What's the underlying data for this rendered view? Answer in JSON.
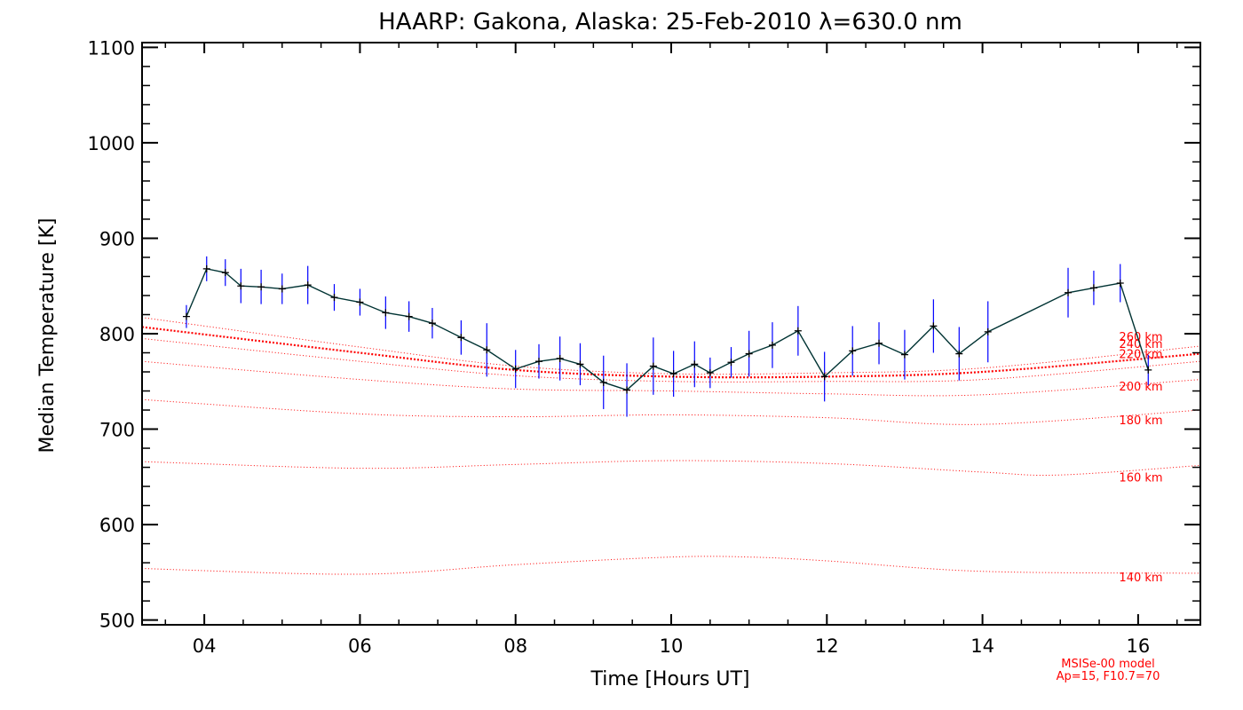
{
  "chart_data": {
    "type": "line",
    "title": "HAARP: Gakona,  Alaska: 25-Feb-2010 λ=630.0 nm",
    "xlabel": "Time [Hours UT]",
    "ylabel": "Median Temperature [K]",
    "xlim": [
      3.2,
      16.8
    ],
    "ylim": [
      495,
      1105
    ],
    "x_ticks": [
      4,
      6,
      8,
      10,
      12,
      14,
      16
    ],
    "x_tick_labels": [
      "04",
      "06",
      "08",
      "10",
      "12",
      "14",
      "16"
    ],
    "y_ticks": [
      500,
      600,
      700,
      800,
      900,
      1000,
      1100
    ],
    "y_tick_labels": [
      "500",
      "600",
      "700",
      "800",
      "900",
      "1000",
      "1100"
    ],
    "grid": false,
    "colors": {
      "measurement_line": "#003333",
      "error_bars": "#0000ff",
      "model_lines": "#ff0000"
    },
    "measurements": {
      "x": [
        3.77,
        4.03,
        4.27,
        4.47,
        4.73,
        5.0,
        5.33,
        5.67,
        6.0,
        6.33,
        6.63,
        6.93,
        7.3,
        7.63,
        8.0,
        8.3,
        8.57,
        8.83,
        9.13,
        9.43,
        9.77,
        10.03,
        10.3,
        10.5,
        10.77,
        11.0,
        11.3,
        11.63,
        11.97,
        12.33,
        12.67,
        13.0,
        13.37,
        13.7,
        14.07,
        15.1,
        15.43,
        15.77,
        16.13
      ],
      "y": [
        818,
        868,
        864,
        850,
        849,
        847,
        851,
        838,
        833,
        822,
        818,
        811,
        796,
        783,
        763,
        771,
        774,
        768,
        749,
        741,
        766,
        758,
        768,
        759,
        770,
        779,
        788,
        803,
        755,
        782,
        790,
        778,
        808,
        779,
        802,
        843,
        848,
        853,
        762
      ],
      "err": [
        12,
        13,
        14,
        18,
        18,
        16,
        20,
        14,
        14,
        17,
        16,
        16,
        18,
        28,
        20,
        18,
        23,
        22,
        28,
        28,
        30,
        24,
        24,
        16,
        16,
        24,
        24,
        26,
        26,
        26,
        22,
        26,
        28,
        28,
        32,
        26,
        18,
        20,
        16
      ]
    },
    "model_series": [
      {
        "name": "140 km",
        "x": [
          3.2,
          6,
          8,
          10,
          11,
          12,
          14,
          16.8
        ],
        "y": [
          554,
          548,
          558,
          566,
          566,
          562,
          551,
          549
        ]
      },
      {
        "name": "160 km",
        "x": [
          3.2,
          6,
          8,
          10,
          12,
          14,
          15,
          16.8
        ],
        "y": [
          666,
          659,
          663,
          667,
          664,
          655,
          652,
          662
        ]
      },
      {
        "name": "180 km",
        "x": [
          3.2,
          6,
          8,
          10,
          12,
          14,
          16.8
        ],
        "y": [
          731,
          716,
          713,
          715,
          712,
          705,
          720
        ]
      },
      {
        "name": "200 km",
        "x": [
          3.2,
          6,
          8,
          10,
          12,
          14,
          16.8
        ],
        "y": [
          771,
          752,
          742,
          740,
          737,
          736,
          752
        ]
      },
      {
        "name": "220 km",
        "x": [
          3.2,
          6,
          8,
          10,
          12,
          14,
          16.8
        ],
        "y": [
          795,
          771,
          756,
          750,
          750,
          752,
          771
        ]
      },
      {
        "name": "240 km",
        "x": [
          3.2,
          6,
          8,
          10,
          12,
          14,
          16.8
        ],
        "y": [
          807,
          780,
          762,
          755,
          755,
          760,
          779
        ]
      },
      {
        "name": "260 km",
        "x": [
          3.2,
          6,
          8,
          10,
          12,
          14,
          16.8
        ],
        "y": [
          817,
          786,
          766,
          758,
          759,
          764,
          787
        ]
      }
    ],
    "model_labels": [
      {
        "text": "260 km",
        "value": 797
      },
      {
        "text": "240 km",
        "value": 790
      },
      {
        "text": "220 km",
        "value": 779
      },
      {
        "text": "200 km",
        "value": 745
      },
      {
        "text": "180 km",
        "value": 710
      },
      {
        "text": "160 km",
        "value": 650
      },
      {
        "text": "140 km",
        "value": 545
      }
    ],
    "footnote": [
      "MSISe-00 model",
      "Ap=15, F10.7=70"
    ]
  }
}
